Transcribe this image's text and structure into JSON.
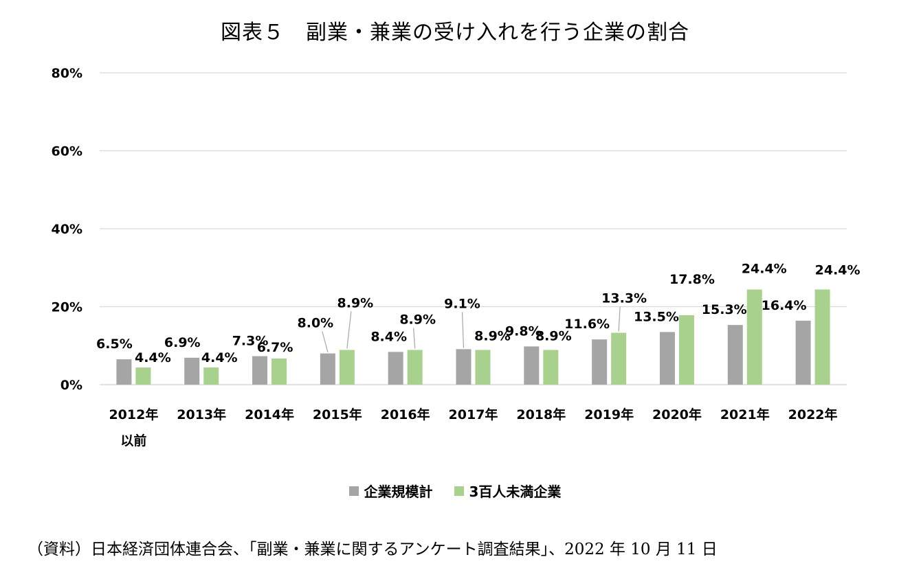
{
  "title": "図表５　副業・兼業の受け入れを行う企業の割合",
  "source": "（資料）日本経済団体連合会、「副業・兼業に関するアンケート調査結果」、2022 年 10 月 11 日",
  "colors": {
    "series1": "#a5a5a5",
    "series2": "#a9d18e",
    "grid": "#d9d9d9",
    "axis": "#d9d9d9"
  },
  "chart_data": {
    "type": "bar",
    "title": "図表５　副業・兼業の受け入れを行う企業の割合",
    "xlabel": "",
    "ylabel": "",
    "ylim": [
      0,
      80
    ],
    "yticks": [
      "0%",
      "20%",
      "40%",
      "60%",
      "80%"
    ],
    "ytick_values": [
      0,
      20,
      40,
      60,
      80
    ],
    "categories": [
      [
        "2012年",
        "以前"
      ],
      [
        "2013年"
      ],
      [
        "2014年"
      ],
      [
        "2015年"
      ],
      [
        "2016年"
      ],
      [
        "2017年"
      ],
      [
        "2018年"
      ],
      [
        "2019年"
      ],
      [
        "2020年"
      ],
      [
        "2021年"
      ],
      [
        "2022年"
      ]
    ],
    "series": [
      {
        "name": "企業規模計",
        "values": [
          6.5,
          6.9,
          7.3,
          8.0,
          8.4,
          9.1,
          9.8,
          11.6,
          13.5,
          15.3,
          16.4
        ],
        "labels": [
          "6.5%",
          "6.9%",
          "7.3%",
          "8.0%",
          "8.4%",
          "9.1%",
          "9.8%",
          "11.6%",
          "13.5%",
          "15.3%",
          "16.4%"
        ]
      },
      {
        "name": "3百人未満企業",
        "values": [
          4.4,
          4.4,
          6.7,
          8.9,
          8.9,
          8.9,
          8.9,
          13.3,
          17.8,
          24.4,
          24.4
        ],
        "labels": [
          "4.4%",
          "4.4%",
          "6.7%",
          "8.9%",
          "8.9%",
          "8.9%",
          "8.9%",
          "13.3%",
          "17.8%",
          "24.4%",
          "24.4%"
        ]
      }
    ],
    "legend_position": "bottom",
    "grid": true
  }
}
